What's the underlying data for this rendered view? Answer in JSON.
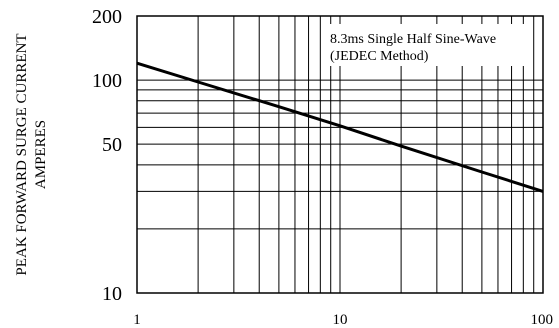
{
  "chart_data": {
    "type": "line",
    "xscale": "log",
    "yscale": "log",
    "xlim": [
      1,
      100
    ],
    "ylim": [
      10,
      200
    ],
    "grid": true,
    "xticks": [
      {
        "value": 1,
        "label": "1"
      },
      {
        "value": 10,
        "label": "10"
      },
      {
        "value": 100,
        "label": "100"
      }
    ],
    "yticks": [
      {
        "value": 10,
        "label": "10"
      },
      {
        "value": 50,
        "label": "50"
      },
      {
        "value": 100,
        "label": "100"
      },
      {
        "value": 200,
        "label": "200"
      }
    ],
    "x_minor_grid": [
      2,
      3,
      4,
      5,
      6,
      7,
      8,
      9,
      20,
      30,
      40,
      50,
      60,
      70,
      80,
      90
    ],
    "y_minor_grid": [
      20,
      30,
      40,
      60,
      70,
      80,
      90
    ],
    "ylabel_lines": [
      "PEAK FORWARD SURGE CURRENT",
      "AMPERES"
    ],
    "annotation_lines": [
      "8.3ms Single Half Sine-Wave",
      "(JEDEC Method)"
    ],
    "series": [
      {
        "x": [
          1,
          2,
          5,
          10,
          20,
          50,
          100
        ],
        "y": [
          120,
          98,
          75,
          61,
          49,
          37,
          30
        ],
        "color": "#000000"
      }
    ]
  }
}
